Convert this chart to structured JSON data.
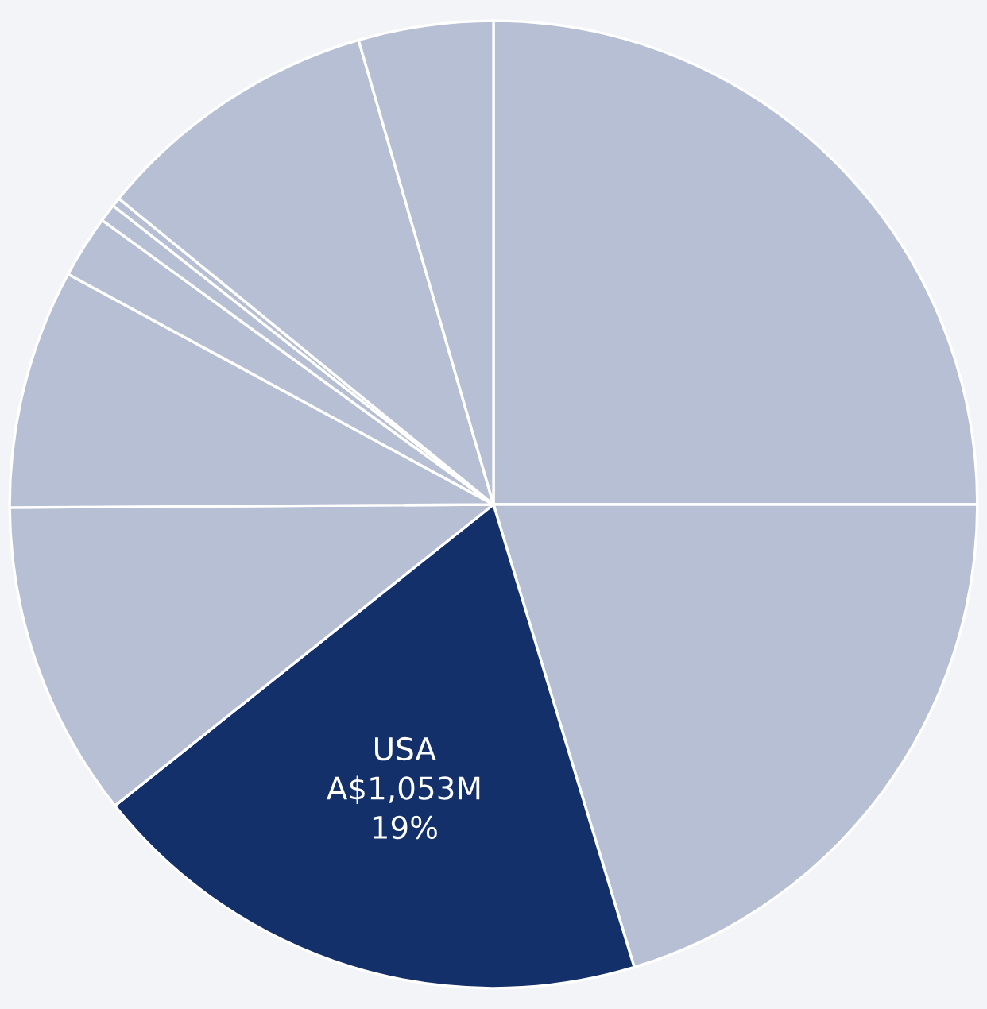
{
  "chart_data": {
    "type": "pie",
    "categories": [
      null,
      null,
      "USA",
      null,
      null,
      null,
      null,
      null,
      null,
      null
    ],
    "values": [
      25,
      20.3,
      19,
      10.6,
      8.0,
      2.1,
      0.6,
      0.3,
      9.6,
      4.5
    ],
    "value_labels": [
      null,
      null,
      "A$1,053M\n19%",
      null,
      null,
      null,
      null,
      null,
      null,
      null
    ],
    "colors": [
      "#b6bfd3",
      "#b6bfd3",
      "#13306b",
      "#b6bfd3",
      "#b6bfd3",
      "#b6bfd3",
      "#b6bfd3",
      "#b6bfd3",
      "#b6bfd3",
      "#b6bfd3"
    ],
    "legend": false
  }
}
